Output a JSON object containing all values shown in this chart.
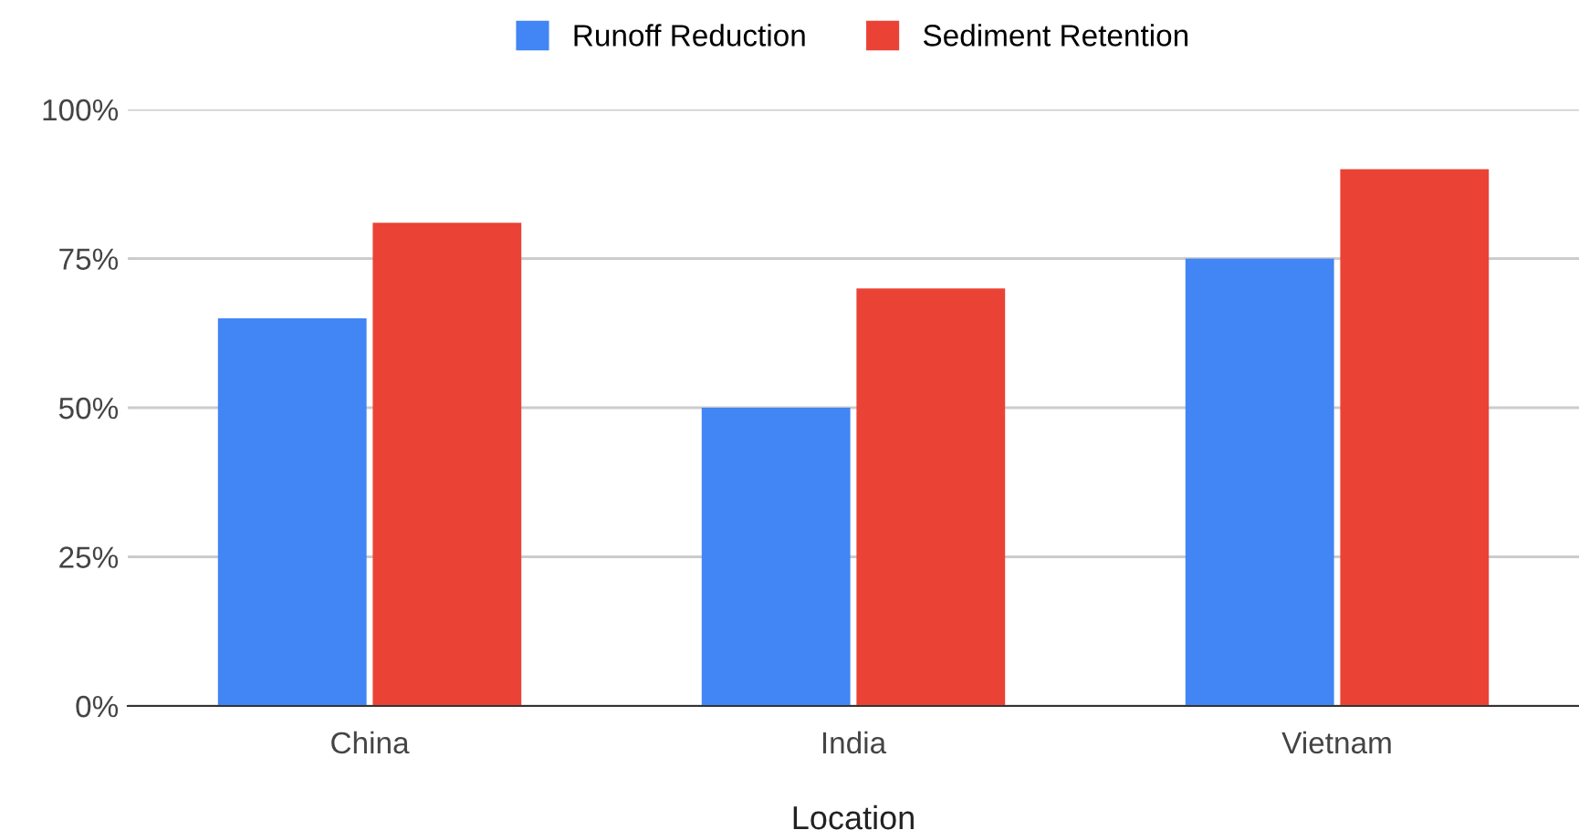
{
  "chart_data": {
    "type": "bar",
    "xlabel": "Location",
    "categories": [
      "China",
      "India",
      "Vietnam"
    ],
    "series": [
      {
        "name": "Runoff Reduction",
        "color": "#4285f4",
        "values": [
          65,
          50,
          75
        ]
      },
      {
        "name": "Sediment Retention",
        "color": "#ea4335",
        "values": [
          81,
          70,
          90
        ]
      }
    ],
    "ylim": [
      0,
      100
    ],
    "yticks": [
      {
        "value": 0,
        "label": "0%"
      },
      {
        "value": 25,
        "label": "25%"
      },
      {
        "value": 50,
        "label": "50%"
      },
      {
        "value": 75,
        "label": "75%"
      },
      {
        "value": 100,
        "label": "100%"
      }
    ],
    "grid": "y",
    "legend": "top"
  }
}
